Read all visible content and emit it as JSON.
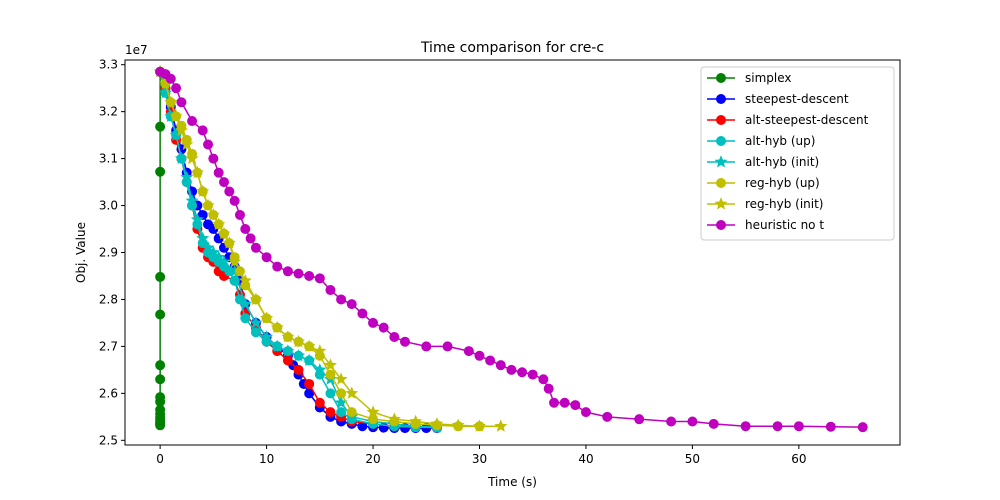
{
  "chart_data": {
    "type": "line",
    "title": "Time comparison for cre-c",
    "xlabel": "Time (s)",
    "ylabel": "Obj. Value",
    "y_offset_label": "1e7",
    "xlim": [
      -3.3,
      69.5
    ],
    "ylim": [
      2.49,
      3.31
    ],
    "y_scale_factor": 10000000,
    "xticks": [
      0,
      10,
      20,
      30,
      40,
      50,
      60
    ],
    "yticks": [
      2.5,
      2.6,
      2.7,
      2.8,
      2.9,
      3.0,
      3.1,
      3.2,
      3.3
    ],
    "ytick_labels": [
      "2.5",
      "2.6",
      "2.7",
      "2.8",
      "2.9",
      "3.0",
      "3.1",
      "3.2",
      "3.3"
    ],
    "xtick_labels": [
      "0",
      "10",
      "20",
      "30",
      "40",
      "50",
      "60"
    ],
    "grid": false,
    "legend_position": "top-right",
    "series": [
      {
        "name": "simplex",
        "color": "#008000",
        "marker": "circle",
        "x": [
          0,
          0,
          0,
          0,
          0,
          0,
          0,
          0,
          0,
          0,
          0,
          0,
          0,
          0,
          0,
          0
        ],
        "y": [
          3.285,
          3.168,
          3.072,
          2.848,
          2.768,
          2.66,
          2.63,
          2.592,
          2.582,
          2.565,
          2.556,
          2.548,
          2.543,
          2.538,
          2.535,
          2.532
        ]
      },
      {
        "name": "steepest-descent",
        "color": "#0000ff",
        "marker": "circle",
        "x": [
          0,
          0.5,
          1.0,
          1.5,
          2.0,
          2.5,
          3.0,
          3.5,
          4.0,
          4.5,
          5.0,
          5.5,
          6.0,
          6.5,
          7.0,
          7.5,
          8.0,
          9.0,
          10.0,
          11.0,
          12.0,
          12.5,
          13.0,
          13.5,
          14.0,
          15.0,
          16.0,
          17.0,
          18.0,
          19.0,
          20.0,
          21.0,
          22.0,
          23.0,
          24.0,
          25.0,
          26.0
        ],
        "y": [
          3.285,
          3.25,
          3.21,
          3.16,
          3.12,
          3.07,
          3.03,
          3.0,
          2.98,
          2.96,
          2.95,
          2.93,
          2.91,
          2.89,
          2.87,
          2.84,
          2.79,
          2.75,
          2.72,
          2.7,
          2.68,
          2.66,
          2.64,
          2.62,
          2.6,
          2.57,
          2.55,
          2.54,
          2.535,
          2.53,
          2.528,
          2.527,
          2.526,
          2.526,
          2.526,
          2.526,
          2.526
        ]
      },
      {
        "name": "alt-steepest-descent",
        "color": "#ff0000",
        "marker": "circle",
        "x": [
          0,
          0.5,
          1.0,
          1.5,
          2.0,
          2.5,
          3.0,
          3.5,
          4.0,
          4.5,
          5.0,
          5.5,
          6.0,
          7.0,
          7.5,
          8.0,
          9.0,
          10.0,
          11.0,
          12.0,
          13.0,
          14.0,
          15.0,
          16.0,
          17.0,
          18.0,
          20.0,
          22.0,
          24.0,
          26.0
        ],
        "y": [
          3.285,
          3.25,
          3.2,
          3.14,
          3.1,
          3.05,
          3.0,
          2.95,
          2.91,
          2.89,
          2.88,
          2.86,
          2.85,
          2.84,
          2.81,
          2.77,
          2.74,
          2.71,
          2.69,
          2.67,
          2.65,
          2.62,
          2.58,
          2.56,
          2.55,
          2.54,
          2.535,
          2.53,
          2.528,
          2.527
        ]
      },
      {
        "name": "alt-hyb (up)",
        "color": "#00bfbf",
        "marker": "circle",
        "x": [
          0,
          0.5,
          1.0,
          1.5,
          2.0,
          2.5,
          3.0,
          3.5,
          4.0,
          4.5,
          5.0,
          5.5,
          6.0,
          6.5,
          7.0,
          7.5,
          8.0,
          9.0,
          10.0,
          11.0,
          12.0,
          13.0,
          14.0,
          15.0,
          16.0,
          17.0,
          18.0,
          20.0,
          22.0,
          24.0,
          26.0
        ],
        "y": [
          3.285,
          3.24,
          3.19,
          3.15,
          3.1,
          3.05,
          3.0,
          2.96,
          2.92,
          2.9,
          2.89,
          2.88,
          2.87,
          2.86,
          2.84,
          2.8,
          2.76,
          2.73,
          2.71,
          2.7,
          2.69,
          2.68,
          2.67,
          2.64,
          2.6,
          2.56,
          2.545,
          2.535,
          2.53,
          2.528,
          2.527
        ]
      },
      {
        "name": "alt-hyb (init)",
        "color": "#00bfbf",
        "marker": "star",
        "x": [
          0,
          0.5,
          1.0,
          1.5,
          2.0,
          2.5,
          3.0,
          3.5,
          4.0,
          4.5,
          5.0,
          5.5,
          6.0,
          7.0,
          8.0,
          9.0,
          10.0,
          11.0,
          12.0,
          13.0,
          14.0,
          15.0,
          16.0,
          17.0,
          18.0,
          20.0,
          22.0,
          24.0,
          26.0
        ],
        "y": [
          3.285,
          3.24,
          3.19,
          3.15,
          3.1,
          3.06,
          3.01,
          2.97,
          2.93,
          2.91,
          2.9,
          2.89,
          2.88,
          2.86,
          2.79,
          2.75,
          2.72,
          2.7,
          2.69,
          2.68,
          2.67,
          2.65,
          2.63,
          2.58,
          2.55,
          2.54,
          2.535,
          2.53,
          2.528
        ]
      },
      {
        "name": "reg-hyb (up)",
        "color": "#bfbf00",
        "marker": "circle",
        "x": [
          0,
          0.5,
          1.0,
          1.5,
          2.0,
          2.5,
          3.0,
          3.5,
          4.0,
          4.5,
          5.0,
          5.5,
          6.0,
          6.5,
          7.0,
          7.5,
          8.0,
          9.0,
          10.0,
          11.0,
          12.0,
          13.0,
          14.0,
          15.0,
          16.0,
          17.0,
          18.0,
          20.0,
          22.0,
          24.0,
          26.0,
          28.0,
          30.0
        ],
        "y": [
          3.285,
          3.26,
          3.22,
          3.19,
          3.17,
          3.14,
          3.11,
          3.07,
          3.03,
          3.0,
          2.98,
          2.96,
          2.94,
          2.92,
          2.89,
          2.86,
          2.83,
          2.8,
          2.76,
          2.74,
          2.72,
          2.71,
          2.7,
          2.68,
          2.64,
          2.6,
          2.56,
          2.545,
          2.54,
          2.535,
          2.532,
          2.53,
          2.53
        ]
      },
      {
        "name": "reg-hyb (init)",
        "color": "#bfbf00",
        "marker": "star",
        "x": [
          0,
          0.5,
          1.0,
          1.5,
          2.0,
          2.5,
          3.0,
          3.5,
          4.0,
          4.5,
          5.0,
          5.5,
          6.0,
          6.5,
          7.0,
          8.0,
          9.0,
          10.0,
          11.0,
          12.0,
          13.0,
          14.0,
          15.0,
          16.0,
          17.0,
          18.0,
          20.0,
          22.0,
          24.0,
          26.0,
          28.0,
          30.0,
          32.0
        ],
        "y": [
          3.285,
          3.26,
          3.22,
          3.19,
          3.16,
          3.13,
          3.1,
          3.07,
          3.03,
          3.0,
          2.98,
          2.96,
          2.94,
          2.92,
          2.88,
          2.84,
          2.8,
          2.76,
          2.74,
          2.72,
          2.71,
          2.7,
          2.69,
          2.66,
          2.63,
          2.6,
          2.56,
          2.545,
          2.54,
          2.535,
          2.532,
          2.53,
          2.53
        ]
      },
      {
        "name": "heuristic no t",
        "color": "#bf00bf",
        "marker": "circle",
        "x": [
          0,
          0.5,
          1.0,
          1.5,
          2.0,
          3.0,
          4.0,
          4.5,
          5.0,
          5.5,
          6.0,
          6.5,
          7.0,
          7.5,
          8.0,
          8.5,
          9.0,
          10.0,
          11.0,
          12.0,
          13.0,
          14.0,
          15.0,
          16.0,
          17.0,
          18.0,
          19.0,
          20.0,
          21.0,
          22.0,
          23.0,
          25.0,
          27.0,
          29.0,
          30.0,
          31.0,
          32.0,
          33.0,
          34.0,
          35.0,
          36.0,
          36.5,
          37.0,
          38.0,
          39.0,
          40.0,
          42.0,
          45.0,
          48.0,
          50.0,
          52.0,
          55.0,
          58.0,
          60.0,
          63.0,
          66.0
        ],
        "y": [
          3.285,
          3.28,
          3.27,
          3.25,
          3.22,
          3.18,
          3.16,
          3.13,
          3.1,
          3.07,
          3.05,
          3.03,
          3.01,
          2.98,
          2.95,
          2.93,
          2.91,
          2.89,
          2.87,
          2.86,
          2.855,
          2.85,
          2.845,
          2.82,
          2.8,
          2.79,
          2.77,
          2.75,
          2.74,
          2.72,
          2.71,
          2.7,
          2.7,
          2.69,
          2.68,
          2.67,
          2.66,
          2.65,
          2.645,
          2.64,
          2.63,
          2.61,
          2.58,
          2.58,
          2.575,
          2.56,
          2.55,
          2.545,
          2.54,
          2.54,
          2.535,
          2.53,
          2.53,
          2.53,
          2.529,
          2.528
        ]
      }
    ]
  }
}
